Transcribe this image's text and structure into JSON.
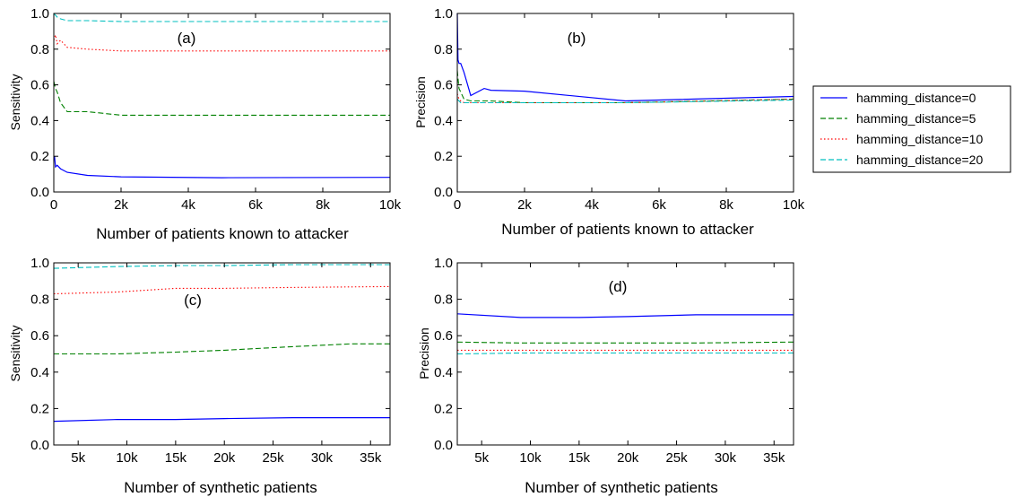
{
  "colors": {
    "hamming_distance=0": "#0000ff",
    "hamming_distance=5": "#008000",
    "hamming_distance=10": "#ff0000",
    "hamming_distance=20": "#00bfbf"
  },
  "legend": {
    "placement": "right of top row",
    "entries": [
      {
        "label": "hamming_distance=0",
        "dash": "solid"
      },
      {
        "label": "hamming_distance=5",
        "dash": "dashed"
      },
      {
        "label": "hamming_distance=10",
        "dash": "dotted"
      },
      {
        "label": "hamming_distance=20",
        "dash": "dashed"
      }
    ]
  },
  "chart_data": [
    {
      "type": "line",
      "panel_label": "(a)",
      "xlabel": "Number of patients known to attacker",
      "ylabel": "Sensitivity",
      "xlim": [
        0,
        10000
      ],
      "ylim": [
        0,
        1.0
      ],
      "xticks": [
        0,
        2000,
        4000,
        6000,
        8000,
        10000
      ],
      "xticklabels": [
        "0",
        "2k",
        "4k",
        "6k",
        "8k",
        "10k"
      ],
      "yticks": [
        0,
        0.2,
        0.4,
        0.6,
        0.8,
        1.0
      ],
      "yticklabels": [
        "0.0",
        "0.2",
        "0.4",
        "0.6",
        "0.8",
        "1.0"
      ],
      "grid": false,
      "series": [
        {
          "name": "hamming_distance=0",
          "x": [
            0,
            20,
            50,
            100,
            200,
            400,
            1000,
            2000,
            5000,
            10000
          ],
          "y": [
            0.18,
            0.2,
            0.14,
            0.15,
            0.13,
            0.11,
            0.093,
            0.085,
            0.08,
            0.082
          ]
        },
        {
          "name": "hamming_distance=5",
          "x": [
            0,
            50,
            100,
            200,
            400,
            1000,
            2000,
            5000,
            10000
          ],
          "y": [
            0.62,
            0.58,
            0.56,
            0.5,
            0.45,
            0.45,
            0.43,
            0.43,
            0.43
          ]
        },
        {
          "name": "hamming_distance=10",
          "x": [
            0,
            50,
            100,
            200,
            400,
            1000,
            2000,
            5000,
            10000
          ],
          "y": [
            0.85,
            0.88,
            0.83,
            0.85,
            0.81,
            0.8,
            0.79,
            0.79,
            0.79
          ]
        },
        {
          "name": "hamming_distance=20",
          "x": [
            0,
            50,
            100,
            200,
            400,
            1000,
            2000,
            5000,
            10000
          ],
          "y": [
            1.0,
            0.99,
            0.98,
            0.97,
            0.96,
            0.96,
            0.955,
            0.955,
            0.955
          ]
        }
      ]
    },
    {
      "type": "line",
      "panel_label": "(b)",
      "xlabel": "Number of patients known to attacker",
      "ylabel": "Precision",
      "xlim": [
        0,
        10000
      ],
      "ylim": [
        0,
        1.0
      ],
      "xticks": [
        0,
        2000,
        4000,
        6000,
        8000,
        10000
      ],
      "xticklabels": [
        "0",
        "2k",
        "4k",
        "6k",
        "8k",
        "10k"
      ],
      "yticks": [
        0,
        0.2,
        0.4,
        0.6,
        0.8,
        1.0
      ],
      "yticklabels": [
        "0.0",
        "0.2",
        "0.4",
        "0.6",
        "0.8",
        "1.0"
      ],
      "grid": false,
      "series": [
        {
          "name": "hamming_distance=0",
          "x": [
            0,
            20,
            50,
            100,
            200,
            400,
            800,
            1000,
            2000,
            5000,
            10000
          ],
          "y": [
            1.0,
            0.74,
            0.72,
            0.72,
            0.67,
            0.54,
            0.58,
            0.57,
            0.565,
            0.51,
            0.535
          ]
        },
        {
          "name": "hamming_distance=5",
          "x": [
            0,
            50,
            100,
            200,
            400,
            1000,
            2000,
            5000,
            10000
          ],
          "y": [
            0.68,
            0.58,
            0.56,
            0.52,
            0.51,
            0.51,
            0.5,
            0.5,
            0.52
          ]
        },
        {
          "name": "hamming_distance=10",
          "x": [
            0,
            50,
            100,
            200,
            400,
            1000,
            2000,
            5000,
            10000
          ],
          "y": [
            0.55,
            0.52,
            0.51,
            0.5,
            0.5,
            0.5,
            0.5,
            0.5,
            0.52
          ]
        },
        {
          "name": "hamming_distance=20",
          "x": [
            0,
            50,
            100,
            200,
            400,
            1000,
            2000,
            5000,
            10000
          ],
          "y": [
            0.52,
            0.51,
            0.5,
            0.5,
            0.5,
            0.5,
            0.5,
            0.5,
            0.515
          ]
        }
      ]
    },
    {
      "type": "line",
      "panel_label": "(c)",
      "xlabel": "Number of synthetic patients",
      "ylabel": "Sensitivity",
      "xlim": [
        2500,
        37000
      ],
      "ylim": [
        0,
        1.0
      ],
      "xticks": [
        5000,
        10000,
        15000,
        20000,
        25000,
        30000,
        35000
      ],
      "xticklabels": [
        "5k",
        "10k",
        "15k",
        "20k",
        "25k",
        "30k",
        "35k"
      ],
      "yticks": [
        0,
        0.2,
        0.4,
        0.6,
        0.8,
        1.0
      ],
      "yticklabels": [
        "0.0",
        "0.2",
        "0.4",
        "0.6",
        "0.8",
        "1.0"
      ],
      "grid": false,
      "series": [
        {
          "name": "hamming_distance=0",
          "x": [
            2500,
            9000,
            15000,
            20000,
            27000,
            37000
          ],
          "y": [
            0.13,
            0.14,
            0.14,
            0.145,
            0.15,
            0.15
          ]
        },
        {
          "name": "hamming_distance=5",
          "x": [
            2500,
            9000,
            15000,
            20000,
            27000,
            33000,
            37000
          ],
          "y": [
            0.5,
            0.5,
            0.51,
            0.52,
            0.54,
            0.555,
            0.555
          ]
        },
        {
          "name": "hamming_distance=10",
          "x": [
            2500,
            9000,
            15000,
            20000,
            27000,
            37000
          ],
          "y": [
            0.83,
            0.84,
            0.86,
            0.86,
            0.865,
            0.87
          ]
        },
        {
          "name": "hamming_distance=20",
          "x": [
            2500,
            9000,
            15000,
            20000,
            27000,
            37000
          ],
          "y": [
            0.97,
            0.98,
            0.985,
            0.985,
            0.99,
            0.99
          ]
        }
      ]
    },
    {
      "type": "line",
      "panel_label": "(d)",
      "xlabel": "Number of synthetic patients",
      "ylabel": "Precision",
      "xlim": [
        2500,
        37000
      ],
      "ylim": [
        0,
        1.0
      ],
      "xticks": [
        5000,
        10000,
        15000,
        20000,
        25000,
        30000,
        35000
      ],
      "xticklabels": [
        "5k",
        "10k",
        "15k",
        "20k",
        "25k",
        "30k",
        "35k"
      ],
      "yticks": [
        0,
        0.2,
        0.4,
        0.6,
        0.8,
        1.0
      ],
      "yticklabels": [
        "0.0",
        "0.2",
        "0.4",
        "0.6",
        "0.8",
        "1.0"
      ],
      "grid": false,
      "series": [
        {
          "name": "hamming_distance=0",
          "x": [
            2500,
            9000,
            15000,
            20000,
            27000,
            37000
          ],
          "y": [
            0.72,
            0.7,
            0.7,
            0.705,
            0.715,
            0.715
          ]
        },
        {
          "name": "hamming_distance=5",
          "x": [
            2500,
            9000,
            15000,
            20000,
            27000,
            37000
          ],
          "y": [
            0.565,
            0.56,
            0.56,
            0.56,
            0.56,
            0.565
          ]
        },
        {
          "name": "hamming_distance=10",
          "x": [
            2500,
            9000,
            15000,
            20000,
            27000,
            37000
          ],
          "y": [
            0.52,
            0.52,
            0.52,
            0.52,
            0.52,
            0.52
          ]
        },
        {
          "name": "hamming_distance=20",
          "x": [
            2500,
            9000,
            15000,
            20000,
            27000,
            37000
          ],
          "y": [
            0.5,
            0.505,
            0.505,
            0.505,
            0.505,
            0.505
          ]
        }
      ]
    }
  ]
}
